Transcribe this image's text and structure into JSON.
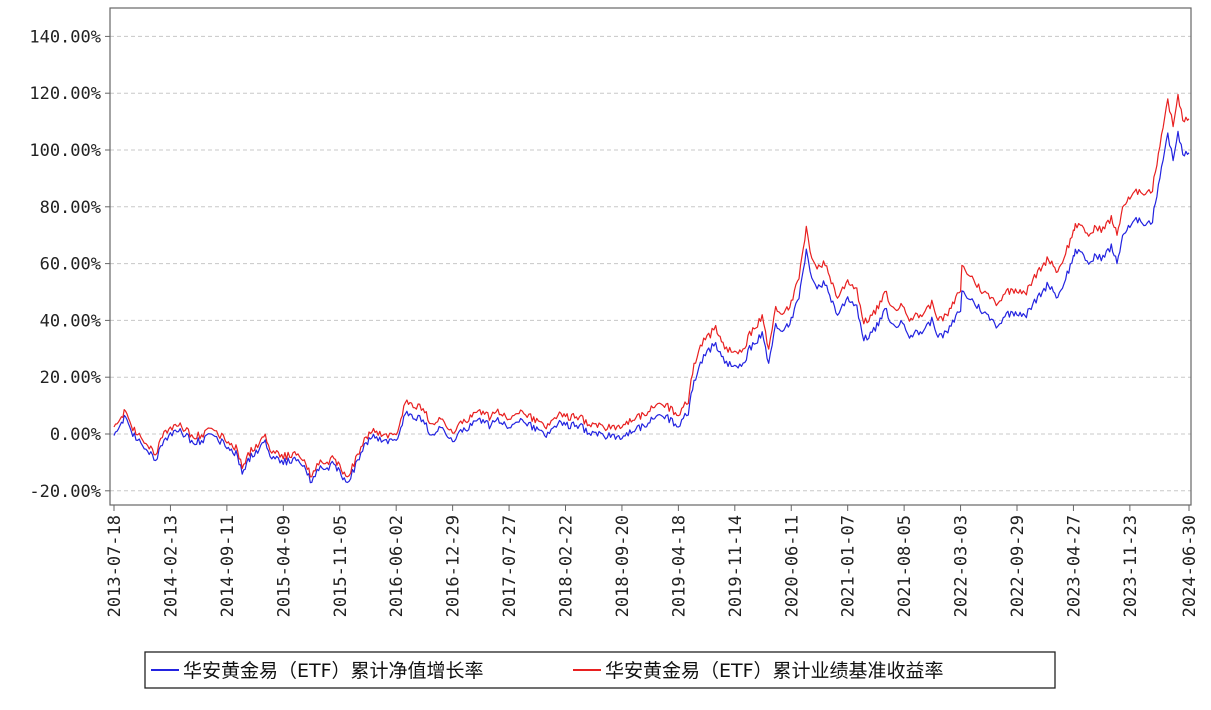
{
  "chart_data": {
    "type": "line",
    "title": "",
    "xlabel": "",
    "ylabel": "",
    "ylim": [
      -25,
      150
    ],
    "y_ticks": [
      -20,
      0,
      20,
      40,
      60,
      80,
      100,
      120,
      140
    ],
    "y_tick_labels": [
      "-20.00%",
      "0.00%",
      "20.00%",
      "40.00%",
      "60.00%",
      "80.00%",
      "100.00%",
      "120.00%",
      "140.00%"
    ],
    "x_range": [
      "2013-07-18",
      "2024-06-30"
    ],
    "x_ticks": [
      "2013-07-18",
      "2014-02-13",
      "2014-09-11",
      "2015-04-09",
      "2015-11-05",
      "2016-06-02",
      "2016-12-29",
      "2017-07-27",
      "2018-02-22",
      "2018-09-20",
      "2019-04-18",
      "2019-11-14",
      "2020-06-11",
      "2021-01-07",
      "2021-08-05",
      "2022-03-03",
      "2022-09-29",
      "2023-04-27",
      "2023-11-23",
      "2024-06-30"
    ],
    "grid": "horizontal-dashed",
    "legend_position": "bottom",
    "series": [
      {
        "name": "华安黄金易（ETF）累计净值增长率",
        "color": "#2323e0",
        "points": [
          [
            "2013-07-18",
            0
          ],
          [
            "2013-08-15",
            4
          ],
          [
            "2013-08-30",
            6
          ],
          [
            "2013-09-20",
            0
          ],
          [
            "2013-10-20",
            -2
          ],
          [
            "2013-11-20",
            -6
          ],
          [
            "2013-12-20",
            -9
          ],
          [
            "2014-01-20",
            -3
          ],
          [
            "2014-02-13",
            0
          ],
          [
            "2014-03-15",
            2
          ],
          [
            "2014-04-15",
            -1
          ],
          [
            "2014-05-15",
            -3
          ],
          [
            "2014-06-15",
            -2
          ],
          [
            "2014-07-10",
            0
          ],
          [
            "2014-08-10",
            -2
          ],
          [
            "2014-09-11",
            -4
          ],
          [
            "2014-10-15",
            -7
          ],
          [
            "2014-11-07",
            -13
          ],
          [
            "2014-12-10",
            -8
          ],
          [
            "2015-01-10",
            -6
          ],
          [
            "2015-01-26",
            -2
          ],
          [
            "2015-02-25",
            -8
          ],
          [
            "2015-04-09",
            -10
          ],
          [
            "2015-05-15",
            -9
          ],
          [
            "2015-06-15",
            -10
          ],
          [
            "2015-07-24",
            -17
          ],
          [
            "2015-08-25",
            -11
          ],
          [
            "2015-09-25",
            -12
          ],
          [
            "2015-10-15",
            -10
          ],
          [
            "2015-11-05",
            -14
          ],
          [
            "2015-12-03",
            -17
          ],
          [
            "2016-01-10",
            -10
          ],
          [
            "2016-02-11",
            -3
          ],
          [
            "2016-03-15",
            -1
          ],
          [
            "2016-04-20",
            -2
          ],
          [
            "2016-06-02",
            -3
          ],
          [
            "2016-07-06",
            8
          ],
          [
            "2016-08-10",
            6
          ],
          [
            "2016-09-10",
            5
          ],
          [
            "2016-10-10",
            -1
          ],
          [
            "2016-11-15",
            2
          ],
          [
            "2016-12-29",
            -2
          ],
          [
            "2017-02-15",
            2
          ],
          [
            "2017-04-15",
            5
          ],
          [
            "2017-05-15",
            3
          ],
          [
            "2017-06-15",
            5
          ],
          [
            "2017-07-27",
            2
          ],
          [
            "2017-09-08",
            6
          ],
          [
            "2017-10-15",
            3
          ],
          [
            "2017-12-12",
            0
          ],
          [
            "2018-01-25",
            4
          ],
          [
            "2018-02-22",
            3
          ],
          [
            "2018-04-15",
            3
          ],
          [
            "2018-05-15",
            1
          ],
          [
            "2018-06-15",
            0
          ],
          [
            "2018-08-15",
            -1
          ],
          [
            "2018-09-20",
            -2
          ],
          [
            "2018-10-25",
            1
          ],
          [
            "2018-12-15",
            3
          ],
          [
            "2019-01-25",
            6
          ],
          [
            "2019-02-20",
            7
          ],
          [
            "2019-03-15",
            5
          ],
          [
            "2019-04-18",
            3
          ],
          [
            "2019-05-25",
            8
          ],
          [
            "2019-06-15",
            18
          ],
          [
            "2019-07-15",
            26
          ],
          [
            "2019-08-15",
            30
          ],
          [
            "2019-09-04",
            32
          ],
          [
            "2019-10-01",
            26
          ],
          [
            "2019-11-14",
            23
          ],
          [
            "2019-12-15",
            24
          ],
          [
            "2020-01-08",
            30
          ],
          [
            "2020-02-24",
            35
          ],
          [
            "2020-03-19",
            25
          ],
          [
            "2020-04-14",
            38
          ],
          [
            "2020-05-15",
            37
          ],
          [
            "2020-06-11",
            40
          ],
          [
            "2020-07-10",
            48
          ],
          [
            "2020-08-06",
            64
          ],
          [
            "2020-08-20",
            57
          ],
          [
            "2020-09-15",
            52
          ],
          [
            "2020-10-15",
            53
          ],
          [
            "2020-11-30",
            42
          ],
          [
            "2021-01-07",
            48
          ],
          [
            "2021-02-10",
            45
          ],
          [
            "2021-03-08",
            33
          ],
          [
            "2021-04-20",
            37
          ],
          [
            "2021-05-31",
            44
          ],
          [
            "2021-06-20",
            38
          ],
          [
            "2021-08-05",
            39
          ],
          [
            "2021-08-25",
            35
          ],
          [
            "2021-10-10",
            36
          ],
          [
            "2021-11-16",
            40
          ],
          [
            "2021-12-15",
            34
          ],
          [
            "2022-01-15",
            36
          ],
          [
            "2022-03-03",
            44
          ],
          [
            "2022-03-08",
            50
          ],
          [
            "2022-04-15",
            47
          ],
          [
            "2022-05-15",
            44
          ],
          [
            "2022-07-20",
            38
          ],
          [
            "2022-08-15",
            42
          ],
          [
            "2022-09-29",
            43
          ],
          [
            "2022-11-03",
            42
          ],
          [
            "2022-12-15",
            48
          ],
          [
            "2023-01-25",
            53
          ],
          [
            "2023-02-28",
            48
          ],
          [
            "2023-04-27",
            62
          ],
          [
            "2023-05-04",
            65
          ],
          [
            "2023-06-29",
            60
          ],
          [
            "2023-07-20",
            63
          ],
          [
            "2023-08-15",
            62
          ],
          [
            "2023-09-15",
            66
          ],
          [
            "2023-10-06",
            60
          ],
          [
            "2023-10-27",
            70
          ],
          [
            "2023-11-23",
            73
          ],
          [
            "2023-12-28",
            76
          ],
          [
            "2024-01-20",
            74
          ],
          [
            "2024-02-15",
            75
          ],
          [
            "2024-03-08",
            88
          ],
          [
            "2024-04-12",
            106
          ],
          [
            "2024-05-02",
            96
          ],
          [
            "2024-05-20",
            107
          ],
          [
            "2024-06-07",
            98
          ],
          [
            "2024-06-30",
            99
          ]
        ]
      },
      {
        "name": "华安黄金易（ETF）累计业绩基准收益率",
        "color": "#e82020",
        "points": [
          [
            "2013-07-18",
            3
          ],
          [
            "2013-08-15",
            6
          ],
          [
            "2013-08-30",
            8
          ],
          [
            "2013-09-20",
            2
          ],
          [
            "2013-10-20",
            0
          ],
          [
            "2013-11-20",
            -4
          ],
          [
            "2013-12-20",
            -7
          ],
          [
            "2014-01-20",
            0
          ],
          [
            "2014-02-13",
            2
          ],
          [
            "2014-03-15",
            4
          ],
          [
            "2014-04-15",
            1
          ],
          [
            "2014-05-15",
            -1
          ],
          [
            "2014-06-15",
            0
          ],
          [
            "2014-07-10",
            2
          ],
          [
            "2014-08-10",
            0
          ],
          [
            "2014-09-11",
            -2
          ],
          [
            "2014-10-15",
            -5
          ],
          [
            "2014-11-07",
            -11
          ],
          [
            "2014-12-10",
            -6
          ],
          [
            "2015-01-10",
            -4
          ],
          [
            "2015-01-26",
            0
          ],
          [
            "2015-02-25",
            -6
          ],
          [
            "2015-04-09",
            -8
          ],
          [
            "2015-05-15",
            -7
          ],
          [
            "2015-06-15",
            -8
          ],
          [
            "2015-07-24",
            -15
          ],
          [
            "2015-08-25",
            -9
          ],
          [
            "2015-09-25",
            -10
          ],
          [
            "2015-10-15",
            -8
          ],
          [
            "2015-11-05",
            -12
          ],
          [
            "2015-12-03",
            -15
          ],
          [
            "2016-01-10",
            -8
          ],
          [
            "2016-02-11",
            -1
          ],
          [
            "2016-03-15",
            1
          ],
          [
            "2016-04-20",
            0
          ],
          [
            "2016-06-02",
            -1
          ],
          [
            "2016-07-06",
            12
          ],
          [
            "2016-08-10",
            10
          ],
          [
            "2016-09-10",
            9
          ],
          [
            "2016-10-10",
            3
          ],
          [
            "2016-11-15",
            5
          ],
          [
            "2016-12-29",
            1
          ],
          [
            "2017-02-15",
            5
          ],
          [
            "2017-04-15",
            8
          ],
          [
            "2017-05-15",
            6
          ],
          [
            "2017-06-15",
            8
          ],
          [
            "2017-07-27",
            5
          ],
          [
            "2017-09-08",
            9
          ],
          [
            "2017-10-15",
            6
          ],
          [
            "2017-12-12",
            3
          ],
          [
            "2018-01-25",
            7
          ],
          [
            "2018-02-22",
            6
          ],
          [
            "2018-04-15",
            6
          ],
          [
            "2018-05-15",
            4
          ],
          [
            "2018-06-15",
            3
          ],
          [
            "2018-08-15",
            2
          ],
          [
            "2018-09-20",
            2
          ],
          [
            "2018-10-25",
            5
          ],
          [
            "2018-12-15",
            7
          ],
          [
            "2019-01-25",
            10
          ],
          [
            "2019-02-20",
            11
          ],
          [
            "2019-03-15",
            9
          ],
          [
            "2019-04-18",
            7
          ],
          [
            "2019-05-25",
            12
          ],
          [
            "2019-06-15",
            24
          ],
          [
            "2019-07-15",
            32
          ],
          [
            "2019-08-15",
            35
          ],
          [
            "2019-09-04",
            38
          ],
          [
            "2019-10-01",
            31
          ],
          [
            "2019-11-14",
            28
          ],
          [
            "2019-12-15",
            29
          ],
          [
            "2020-01-08",
            35
          ],
          [
            "2020-02-24",
            41
          ],
          [
            "2020-03-19",
            30
          ],
          [
            "2020-04-14",
            44
          ],
          [
            "2020-05-15",
            43
          ],
          [
            "2020-06-11",
            46
          ],
          [
            "2020-07-10",
            55
          ],
          [
            "2020-08-06",
            72
          ],
          [
            "2020-08-20",
            64
          ],
          [
            "2020-09-15",
            59
          ],
          [
            "2020-10-15",
            60
          ],
          [
            "2020-11-30",
            48
          ],
          [
            "2021-01-07",
            54
          ],
          [
            "2021-02-10",
            51
          ],
          [
            "2021-03-08",
            39
          ],
          [
            "2021-04-20",
            43
          ],
          [
            "2021-05-31",
            50
          ],
          [
            "2021-06-20",
            44
          ],
          [
            "2021-08-05",
            45
          ],
          [
            "2021-08-25",
            41
          ],
          [
            "2021-10-10",
            42
          ],
          [
            "2021-11-16",
            46
          ],
          [
            "2021-12-15",
            40
          ],
          [
            "2022-01-15",
            42
          ],
          [
            "2022-03-03",
            51
          ],
          [
            "2022-03-08",
            59
          ],
          [
            "2022-04-15",
            55
          ],
          [
            "2022-05-15",
            51
          ],
          [
            "2022-07-20",
            46
          ],
          [
            "2022-08-15",
            50
          ],
          [
            "2022-09-29",
            51
          ],
          [
            "2022-11-03",
            50
          ],
          [
            "2022-12-15",
            57
          ],
          [
            "2023-01-25",
            62
          ],
          [
            "2023-02-28",
            57
          ],
          [
            "2023-04-27",
            71
          ],
          [
            "2023-05-04",
            74
          ],
          [
            "2023-06-29",
            70
          ],
          [
            "2023-07-20",
            73
          ],
          [
            "2023-08-15",
            72
          ],
          [
            "2023-09-15",
            76
          ],
          [
            "2023-10-06",
            70
          ],
          [
            "2023-10-27",
            80
          ],
          [
            "2023-11-23",
            83
          ],
          [
            "2023-12-28",
            86
          ],
          [
            "2024-01-20",
            85
          ],
          [
            "2024-02-15",
            86
          ],
          [
            "2024-03-08",
            99
          ],
          [
            "2024-04-12",
            118
          ],
          [
            "2024-05-02",
            108
          ],
          [
            "2024-05-20",
            120
          ],
          [
            "2024-06-07",
            110
          ],
          [
            "2024-06-30",
            111
          ]
        ]
      }
    ]
  }
}
